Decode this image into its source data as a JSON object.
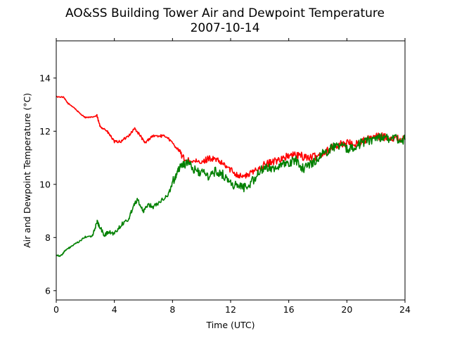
{
  "chart_data": {
    "type": "line",
    "title": "AO&SS Building Tower Air and Dewpoint Temperature",
    "subtitle": "2007-10-14",
    "xlabel": "Time (UTC)",
    "ylabel": "Air and Dewpoint Temperature (°C)",
    "xlim": [
      0,
      24
    ],
    "ylim": [
      5.65,
      15.4
    ],
    "x_ticks": [
      0,
      4,
      8,
      12,
      16,
      20,
      24
    ],
    "y_ticks": [
      6,
      8,
      10,
      12,
      14
    ],
    "grid": false,
    "legend": "none",
    "series": [
      {
        "color": "#ff0000",
        "points": [
          [
            0,
            13.3
          ],
          [
            0.5,
            13.28
          ],
          [
            0.8,
            13.05
          ],
          [
            1.2,
            12.9
          ],
          [
            1.6,
            12.68
          ],
          [
            2.0,
            12.52
          ],
          [
            2.4,
            12.52
          ],
          [
            2.8,
            12.58
          ],
          [
            3.0,
            12.2
          ],
          [
            3.4,
            12.05
          ],
          [
            3.7,
            11.85
          ],
          [
            4.0,
            11.6
          ],
          [
            4.5,
            11.62
          ],
          [
            5.0,
            11.85
          ],
          [
            5.4,
            12.1
          ],
          [
            5.8,
            11.82
          ],
          [
            6.1,
            11.55
          ],
          [
            6.6,
            11.82
          ],
          [
            7.2,
            11.82
          ],
          [
            7.6,
            11.8
          ],
          [
            8.0,
            11.55
          ],
          [
            8.4,
            11.3
          ],
          [
            8.8,
            10.95
          ],
          [
            9.5,
            10.85
          ],
          [
            10.0,
            10.8
          ],
          [
            10.5,
            11.0
          ],
          [
            11.0,
            10.92
          ],
          [
            11.5,
            10.75
          ],
          [
            12.0,
            10.55
          ],
          [
            12.5,
            10.35
          ],
          [
            13.0,
            10.3
          ],
          [
            13.5,
            10.45
          ],
          [
            14.0,
            10.65
          ],
          [
            14.5,
            10.78
          ],
          [
            15.0,
            10.85
          ],
          [
            15.5,
            11.0
          ],
          [
            16.0,
            11.05
          ],
          [
            16.5,
            11.1
          ],
          [
            17.0,
            11.05
          ],
          [
            17.5,
            11.0
          ],
          [
            18.0,
            11.08
          ],
          [
            18.5,
            11.22
          ],
          [
            19.0,
            11.38
          ],
          [
            19.5,
            11.5
          ],
          [
            20.0,
            11.55
          ],
          [
            20.5,
            11.52
          ],
          [
            21.0,
            11.6
          ],
          [
            21.5,
            11.72
          ],
          [
            22.0,
            11.78
          ],
          [
            22.5,
            11.8
          ],
          [
            23.0,
            11.75
          ],
          [
            23.5,
            11.72
          ],
          [
            24.0,
            11.7
          ]
        ]
      },
      {
        "color": "#008000",
        "points": [
          [
            0,
            7.35
          ],
          [
            0.3,
            7.3
          ],
          [
            0.6,
            7.5
          ],
          [
            1.0,
            7.65
          ],
          [
            1.5,
            7.82
          ],
          [
            2.0,
            8.02
          ],
          [
            2.5,
            8.05
          ],
          [
            2.8,
            8.6
          ],
          [
            3.0,
            8.4
          ],
          [
            3.3,
            8.08
          ],
          [
            3.6,
            8.2
          ],
          [
            4.0,
            8.15
          ],
          [
            4.5,
            8.5
          ],
          [
            5.0,
            8.7
          ],
          [
            5.3,
            9.2
          ],
          [
            5.6,
            9.45
          ],
          [
            6.0,
            8.95
          ],
          [
            6.3,
            9.25
          ],
          [
            6.7,
            9.15
          ],
          [
            7.2,
            9.4
          ],
          [
            7.7,
            9.6
          ],
          [
            8.0,
            10.05
          ],
          [
            8.3,
            10.45
          ],
          [
            8.6,
            10.75
          ],
          [
            9.0,
            10.8
          ],
          [
            9.5,
            10.55
          ],
          [
            10.0,
            10.45
          ],
          [
            10.5,
            10.3
          ],
          [
            11.0,
            10.5
          ],
          [
            11.5,
            10.35
          ],
          [
            12.0,
            10.05
          ],
          [
            12.5,
            9.92
          ],
          [
            13.0,
            9.9
          ],
          [
            13.5,
            10.12
          ],
          [
            14.0,
            10.5
          ],
          [
            14.5,
            10.6
          ],
          [
            15.0,
            10.65
          ],
          [
            15.5,
            10.7
          ],
          [
            16.0,
            10.8
          ],
          [
            16.5,
            10.9
          ],
          [
            17.0,
            10.6
          ],
          [
            17.5,
            10.75
          ],
          [
            18.0,
            11.0
          ],
          [
            18.5,
            11.2
          ],
          [
            19.0,
            11.4
          ],
          [
            19.5,
            11.5
          ],
          [
            20.0,
            11.3
          ],
          [
            20.5,
            11.45
          ],
          [
            21.0,
            11.55
          ],
          [
            21.5,
            11.65
          ],
          [
            22.0,
            11.75
          ],
          [
            22.5,
            11.8
          ],
          [
            23.0,
            11.72
          ],
          [
            23.5,
            11.7
          ],
          [
            24.0,
            11.68
          ]
        ]
      }
    ]
  }
}
